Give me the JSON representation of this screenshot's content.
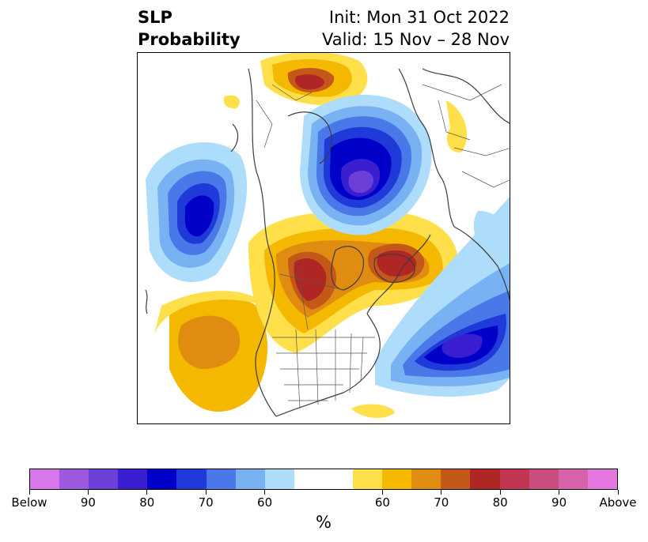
{
  "title": {
    "left_line1": "SLP",
    "left_line2": "Probability",
    "right_line1": "Init: Mon 31 Oct 2022",
    "right_line2": "Valid: 15 Nov – 28 Nov"
  },
  "map": {
    "projection": "north-polar-stereographic",
    "features": [
      "coastlines",
      "country-borders",
      "us-state-borders"
    ]
  },
  "colorbar": {
    "unit": "%",
    "below_colors": [
      "#d877e9",
      "#9c58e0",
      "#6b3fd8",
      "#3a1fd0",
      "#0000c9",
      "#1f3ad8",
      "#4a78e8",
      "#79b2f2",
      "#aedcfb"
    ],
    "neutral_color": "#ffffff",
    "above_colors": [
      "#ffe04a",
      "#f4b800",
      "#e08c10",
      "#c45818",
      "#b02624",
      "#c23652",
      "#cc4e80",
      "#d862aa",
      "#e478e0"
    ],
    "tick_labels": [
      "Below",
      "90",
      "80",
      "70",
      "60",
      "60",
      "70",
      "80",
      "90",
      "Above"
    ]
  }
}
